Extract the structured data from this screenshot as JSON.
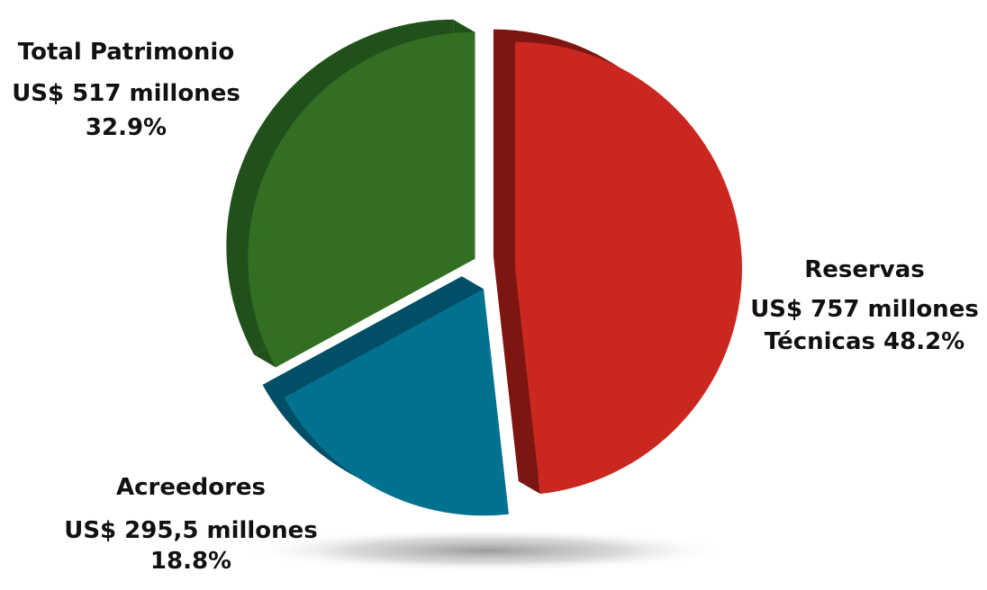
{
  "chart_data": {
    "type": "pie",
    "three_d": true,
    "exploded": true,
    "slices": [
      {
        "category": "Reservas Técnicas",
        "amount": 757,
        "percent": 48.2,
        "color": "#c9271f",
        "side_color": "#7d1510",
        "label_lines": [
          "Reservas",
          "US$ 757 millones",
          "Técnicas 48.2%"
        ]
      },
      {
        "category": "Acreedores",
        "amount": 295.5,
        "percent": 18.8,
        "color": "#007290",
        "side_color": "#004f66",
        "label_lines": [
          "Acreedores",
          "US$ 295,5 millones",
          "18.8%"
        ]
      },
      {
        "category": "Total Patrimonio",
        "amount": 517,
        "percent": 32.9,
        "color": "#336f22",
        "side_color": "#21511a",
        "label_lines": [
          "Total Patrimonio",
          "US$ 517 millones",
          "32.9%"
        ]
      }
    ]
  }
}
